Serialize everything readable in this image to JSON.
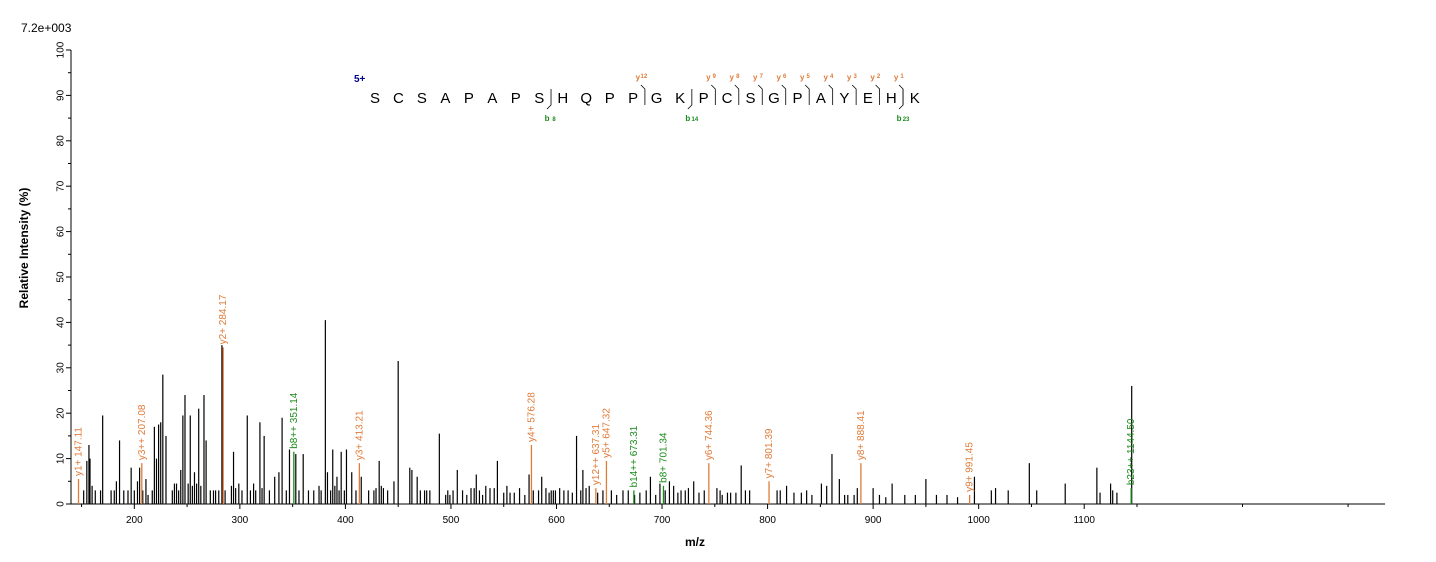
{
  "chart_data": {
    "type": "bar",
    "title": "",
    "scale_label": "7.2e+003",
    "xlabel": "m/z",
    "ylabel": "Relative   Intensity (%)",
    "xlim": [
      140,
      1385
    ],
    "ylim": [
      0,
      100
    ],
    "x_ticks": [
      200,
      300,
      400,
      500,
      600,
      700,
      800,
      900,
      1000,
      1100
    ],
    "y_ticks": [
      0,
      10,
      20,
      30,
      40,
      50,
      60,
      70,
      80,
      90,
      100
    ],
    "colors": {
      "y_ion": "#e07b39",
      "b_ion": "#1a8a1a",
      "charge": "#00008b",
      "peak": "#000000"
    },
    "peptide": {
      "charge_state": "5+",
      "sequence": [
        "S",
        "C",
        "S",
        "A",
        "P",
        "A",
        "P",
        "S",
        "H",
        "Q",
        "P",
        "P",
        "G",
        "K",
        "P",
        "C",
        "S",
        "G",
        "P",
        "A",
        "Y",
        "E",
        "H",
        "K"
      ],
      "y_fragments": [
        {
          "label": "y",
          "num": "12",
          "after": 12
        },
        {
          "label": "y",
          "num": "9",
          "after": 15
        },
        {
          "label": "y",
          "num": "8",
          "after": 16
        },
        {
          "label": "y",
          "num": "7",
          "after": 17
        },
        {
          "label": "y",
          "num": "6",
          "after": 18
        },
        {
          "label": "y",
          "num": "5",
          "after": 19
        },
        {
          "label": "y",
          "num": "4",
          "after": 20
        },
        {
          "label": "y",
          "num": "3",
          "after": 21
        },
        {
          "label": "y",
          "num": "2",
          "after": 22
        },
        {
          "label": "y",
          "num": "1",
          "after": 23
        }
      ],
      "b_fragments": [
        {
          "label": "b",
          "num": "8",
          "after": 8
        },
        {
          "label": "b",
          "num": "14",
          "after": 14
        },
        {
          "label": "b",
          "num": "23",
          "after": 23
        }
      ]
    },
    "annotated_peaks": [
      {
        "mz": 147.11,
        "intensity": 5.5,
        "label": "y1+ 147.11",
        "ion": "y"
      },
      {
        "mz": 207.08,
        "intensity": 9.0,
        "label": "y3++ 207.08",
        "ion": "y"
      },
      {
        "mz": 284.17,
        "intensity": 34.5,
        "label": "y2+ 284.17",
        "ion": "y"
      },
      {
        "mz": 351.14,
        "intensity": 11.5,
        "label": "b8++ 351.14",
        "ion": "b"
      },
      {
        "mz": 413.21,
        "intensity": 9.0,
        "label": "y3+ 413.21",
        "ion": "y"
      },
      {
        "mz": 576.28,
        "intensity": 13.0,
        "label": "y4+ 576.28",
        "ion": "y"
      },
      {
        "mz": 637.31,
        "intensity": 3.5,
        "label": "y12++ 637.31",
        "ion": "y"
      },
      {
        "mz": 647.32,
        "intensity": 9.5,
        "label": "y5+ 647.32",
        "ion": "y"
      },
      {
        "mz": 673.31,
        "intensity": 3.0,
        "label": "b14++ 673.31",
        "ion": "b"
      },
      {
        "mz": 701.34,
        "intensity": 4.0,
        "label": "b8+ 701.34",
        "ion": "b"
      },
      {
        "mz": 744.36,
        "intensity": 9.0,
        "label": "y6+ 744.36",
        "ion": "y"
      },
      {
        "mz": 801.39,
        "intensity": 5.0,
        "label": "y7+ 801.39",
        "ion": "y"
      },
      {
        "mz": 888.41,
        "intensity": 9.0,
        "label": "y8+ 888.41",
        "ion": "y"
      },
      {
        "mz": 991.45,
        "intensity": 2.0,
        "label": "y9+ 991.45",
        "ion": "y"
      },
      {
        "mz": 1144.5,
        "intensity": 3.5,
        "label": "b23++ 1144.50",
        "ion": "b"
      }
    ],
    "peaks": [
      [
        152,
        3
      ],
      [
        155,
        9.5
      ],
      [
        157,
        13
      ],
      [
        158,
        10
      ],
      [
        160,
        4
      ],
      [
        163,
        3
      ],
      [
        168,
        3
      ],
      [
        170,
        19.5
      ],
      [
        178,
        3
      ],
      [
        181,
        3
      ],
      [
        183,
        5
      ],
      [
        186,
        14
      ],
      [
        190,
        3
      ],
      [
        194,
        3
      ],
      [
        197,
        8
      ],
      [
        200,
        3
      ],
      [
        203,
        5
      ],
      [
        205,
        8
      ],
      [
        208,
        3
      ],
      [
        211,
        5.5
      ],
      [
        213,
        2
      ],
      [
        217,
        3
      ],
      [
        219,
        17
      ],
      [
        221,
        10
      ],
      [
        223,
        17.5
      ],
      [
        225,
        18
      ],
      [
        227,
        28.5
      ],
      [
        230,
        15
      ],
      [
        236,
        3
      ],
      [
        238,
        4.5
      ],
      [
        240,
        4.5
      ],
      [
        242,
        3
      ],
      [
        244,
        7.5
      ],
      [
        246,
        19.5
      ],
      [
        248,
        24
      ],
      [
        251,
        4.5
      ],
      [
        253,
        19.5
      ],
      [
        255,
        4
      ],
      [
        257,
        7
      ],
      [
        259,
        4.5
      ],
      [
        261,
        21
      ],
      [
        263,
        4
      ],
      [
        266,
        24
      ],
      [
        268,
        14
      ],
      [
        272,
        3
      ],
      [
        275,
        3
      ],
      [
        277,
        3
      ],
      [
        280,
        3
      ],
      [
        283,
        35
      ],
      [
        286,
        3
      ],
      [
        292,
        4
      ],
      [
        294,
        11.5
      ],
      [
        296,
        3.5
      ],
      [
        299,
        4.5
      ],
      [
        302,
        3
      ],
      [
        307,
        19.5
      ],
      [
        310,
        3
      ],
      [
        313,
        4.5
      ],
      [
        315,
        3
      ],
      [
        319,
        18
      ],
      [
        321,
        3.5
      ],
      [
        323,
        15
      ],
      [
        328,
        3
      ],
      [
        333,
        6
      ],
      [
        337,
        7
      ],
      [
        340,
        19
      ],
      [
        344,
        3
      ],
      [
        347,
        12
      ],
      [
        353,
        11
      ],
      [
        356,
        3
      ],
      [
        360,
        11
      ],
      [
        365,
        3
      ],
      [
        370,
        3
      ],
      [
        375,
        4
      ],
      [
        377,
        3
      ],
      [
        381,
        40.5
      ],
      [
        383,
        7
      ],
      [
        386,
        3
      ],
      [
        388,
        12
      ],
      [
        390,
        4
      ],
      [
        392,
        6
      ],
      [
        394,
        3
      ],
      [
        396,
        11.5
      ],
      [
        399,
        3
      ],
      [
        401,
        12
      ],
      [
        406,
        7
      ],
      [
        410,
        3
      ],
      [
        415,
        6
      ],
      [
        422,
        3
      ],
      [
        427,
        3
      ],
      [
        429,
        3.5
      ],
      [
        432,
        9.5
      ],
      [
        434,
        4
      ],
      [
        436,
        3.5
      ],
      [
        440,
        3
      ],
      [
        446,
        5
      ],
      [
        450,
        31.5
      ],
      [
        461,
        8
      ],
      [
        463,
        7.5
      ],
      [
        468,
        6
      ],
      [
        471,
        3
      ],
      [
        475,
        3
      ],
      [
        477,
        3
      ],
      [
        480,
        3
      ],
      [
        489,
        15.5
      ],
      [
        495,
        2
      ],
      [
        497,
        3
      ],
      [
        499,
        2
      ],
      [
        502,
        3
      ],
      [
        506,
        7.5
      ],
      [
        511,
        3
      ],
      [
        515,
        2
      ],
      [
        519,
        3.5
      ],
      [
        522,
        3.5
      ],
      [
        524,
        6.5
      ],
      [
        527,
        3
      ],
      [
        530,
        2
      ],
      [
        533,
        4
      ],
      [
        537,
        3.5
      ],
      [
        541,
        3.5
      ],
      [
        544,
        9.5
      ],
      [
        550,
        2.5
      ],
      [
        553,
        4
      ],
      [
        556,
        2.5
      ],
      [
        560,
        2.5
      ],
      [
        565,
        3.5
      ],
      [
        570,
        2
      ],
      [
        574,
        6.5
      ],
      [
        578,
        3
      ],
      [
        583,
        3
      ],
      [
        586,
        6
      ],
      [
        590,
        3.5
      ],
      [
        593,
        2.5
      ],
      [
        595,
        3
      ],
      [
        597,
        3
      ],
      [
        599,
        3
      ],
      [
        603,
        3.5
      ],
      [
        607,
        3
      ],
      [
        611,
        3
      ],
      [
        615,
        2.5
      ],
      [
        619,
        15
      ],
      [
        623,
        3
      ],
      [
        625,
        7.5
      ],
      [
        628,
        3.5
      ],
      [
        631,
        4
      ],
      [
        639,
        2.5
      ],
      [
        644,
        3
      ],
      [
        652,
        3
      ],
      [
        657,
        2
      ],
      [
        663,
        3
      ],
      [
        668,
        3
      ],
      [
        674,
        2
      ],
      [
        679,
        2.5
      ],
      [
        685,
        3
      ],
      [
        689,
        6
      ],
      [
        694,
        2
      ],
      [
        698,
        4.5
      ],
      [
        703,
        3
      ],
      [
        707,
        5
      ],
      [
        711,
        4
      ],
      [
        715,
        2.5
      ],
      [
        718,
        3
      ],
      [
        722,
        3
      ],
      [
        725,
        3.5
      ],
      [
        730,
        5
      ],
      [
        735,
        2.5
      ],
      [
        740,
        3
      ],
      [
        752,
        3.5
      ],
      [
        755,
        3
      ],
      [
        757,
        2
      ],
      [
        762,
        2.5
      ],
      [
        765,
        2.5
      ],
      [
        770,
        2.5
      ],
      [
        775,
        8.5
      ],
      [
        779,
        3
      ],
      [
        783,
        3
      ],
      [
        809,
        3
      ],
      [
        812,
        3
      ],
      [
        818,
        4
      ],
      [
        825,
        2.5
      ],
      [
        832,
        2.5
      ],
      [
        837,
        3
      ],
      [
        842,
        2
      ],
      [
        851,
        4.5
      ],
      [
        856,
        4
      ],
      [
        861,
        11
      ],
      [
        868,
        5.5
      ],
      [
        873,
        2
      ],
      [
        876,
        2
      ],
      [
        882,
        2
      ],
      [
        885,
        3.5
      ],
      [
        900,
        3.5
      ],
      [
        906,
        2
      ],
      [
        912,
        1.5
      ],
      [
        918,
        4.5
      ],
      [
        930,
        2
      ],
      [
        940,
        2
      ],
      [
        950,
        5.5
      ],
      [
        960,
        2
      ],
      [
        970,
        2
      ],
      [
        980,
        1.5
      ],
      [
        996,
        6
      ],
      [
        1012,
        3
      ],
      [
        1016,
        3.5
      ],
      [
        1028,
        3
      ],
      [
        1048,
        9
      ],
      [
        1055,
        3
      ],
      [
        1082,
        4.5
      ],
      [
        1112,
        8
      ],
      [
        1115,
        2.5
      ],
      [
        1125,
        4.5
      ],
      [
        1127,
        3
      ],
      [
        1131,
        2.5
      ],
      [
        1145,
        26
      ]
    ]
  }
}
